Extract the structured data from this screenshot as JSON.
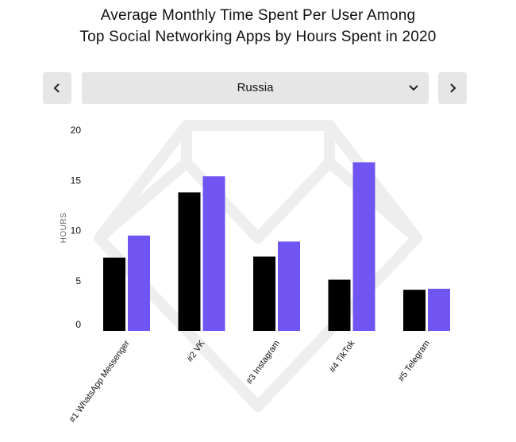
{
  "header": {
    "title_line1": "Average Monthly Time Spent Per User Among",
    "title_line2": "Top Social Networking Apps by Hours Spent in 2020"
  },
  "selector": {
    "value": "Russia",
    "prev_icon": "chevron-left-icon",
    "next_icon": "chevron-right-icon",
    "dropdown_icon": "chevron-down-icon"
  },
  "colors": {
    "series1": "#000000",
    "series2": "#7155f2",
    "watermark": "#eeeeee"
  },
  "chart_data": {
    "type": "bar",
    "title": "Average Monthly Time Spent Per User Among Top Social Networking Apps by Hours Spent in 2020",
    "xlabel": "",
    "ylabel": "HOURS",
    "ylim": [
      0,
      20
    ],
    "yticks": [
      0,
      5,
      10,
      15,
      20
    ],
    "grid": false,
    "categories": [
      "#1 WhatsApp Messenger",
      "#2 VK",
      "#3 Instagram",
      "#4 TikTok",
      "#5 Telegram"
    ],
    "series": [
      {
        "name": "Series 1",
        "values": [
          7.3,
          13.8,
          7.4,
          5.1,
          4.1
        ]
      },
      {
        "name": "Series 2",
        "values": [
          9.5,
          15.4,
          8.9,
          16.8,
          4.2
        ]
      }
    ]
  }
}
